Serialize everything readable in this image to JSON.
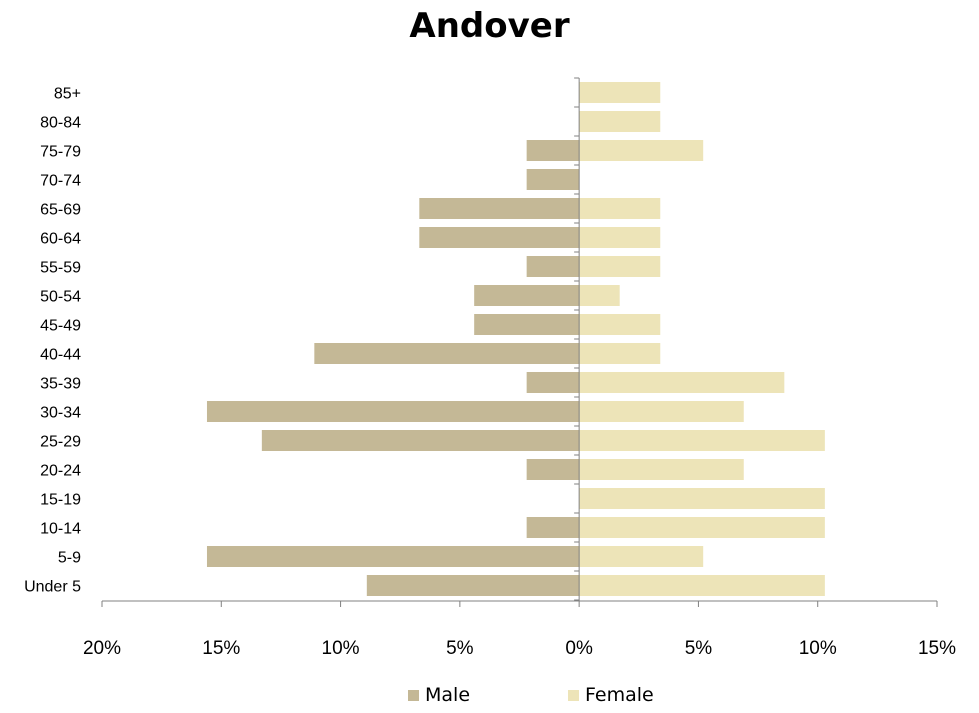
{
  "chart_data": {
    "type": "bar",
    "orientation": "horizontal",
    "title": "Andover",
    "categories": [
      "Under 5",
      "5-9",
      "10-14",
      "15-19",
      "20-24",
      "25-29",
      "30-34",
      "35-39",
      "40-44",
      "45-49",
      "50-54",
      "55-59",
      "60-64",
      "65-69",
      "70-74",
      "75-79",
      "80-84",
      "85+"
    ],
    "series": [
      {
        "name": "Male",
        "color": "#c4b896",
        "values": [
          8.9,
          15.6,
          2.2,
          0,
          2.2,
          13.3,
          15.6,
          2.2,
          11.1,
          4.4,
          4.4,
          2.2,
          6.7,
          6.7,
          2.2,
          2.2,
          0,
          0
        ]
      },
      {
        "name": "Female",
        "color": "#ede4b8",
        "values": [
          10.3,
          5.2,
          10.3,
          10.3,
          6.9,
          10.3,
          6.9,
          8.6,
          3.4,
          3.4,
          1.7,
          3.4,
          3.4,
          3.4,
          0,
          5.2,
          3.4,
          3.4
        ]
      }
    ],
    "xlim": [
      -20,
      15
    ],
    "x_ticks": [
      -20,
      -15,
      -10,
      -5,
      0,
      5,
      10,
      15
    ],
    "x_tick_labels": [
      "20%",
      "15%",
      "10%",
      "5%",
      "0%",
      "5%",
      "10%",
      "15%"
    ],
    "xlabel": "",
    "ylabel": "",
    "grid": false,
    "legend_position": "bottom"
  }
}
